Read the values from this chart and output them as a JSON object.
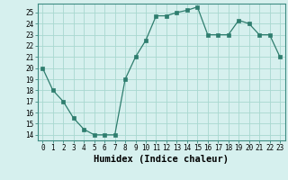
{
  "x": [
    0,
    1,
    2,
    3,
    4,
    5,
    6,
    7,
    8,
    9,
    10,
    11,
    12,
    13,
    14,
    15,
    16,
    17,
    18,
    19,
    20,
    21,
    22,
    23
  ],
  "y": [
    20,
    18,
    17,
    15.5,
    14.5,
    14,
    14,
    14,
    19,
    21,
    22.5,
    24.7,
    24.7,
    25,
    25.2,
    25.5,
    23,
    23,
    23,
    24.3,
    24,
    23,
    23,
    21
  ],
  "line_color": "#2e7d6e",
  "marker": "s",
  "marker_size": 2.5,
  "bg_color": "#d6f0ee",
  "grid_color": "#a8d8d0",
  "xlabel": "Humidex (Indice chaleur)",
  "xlim": [
    -0.5,
    23.5
  ],
  "ylim": [
    13.5,
    25.8
  ],
  "yticks": [
    14,
    15,
    16,
    17,
    18,
    19,
    20,
    21,
    22,
    23,
    24,
    25
  ],
  "xticks": [
    0,
    1,
    2,
    3,
    4,
    5,
    6,
    7,
    8,
    9,
    10,
    11,
    12,
    13,
    14,
    15,
    16,
    17,
    18,
    19,
    20,
    21,
    22,
    23
  ],
  "tick_fontsize": 5.5,
  "xlabel_fontsize": 7.5
}
